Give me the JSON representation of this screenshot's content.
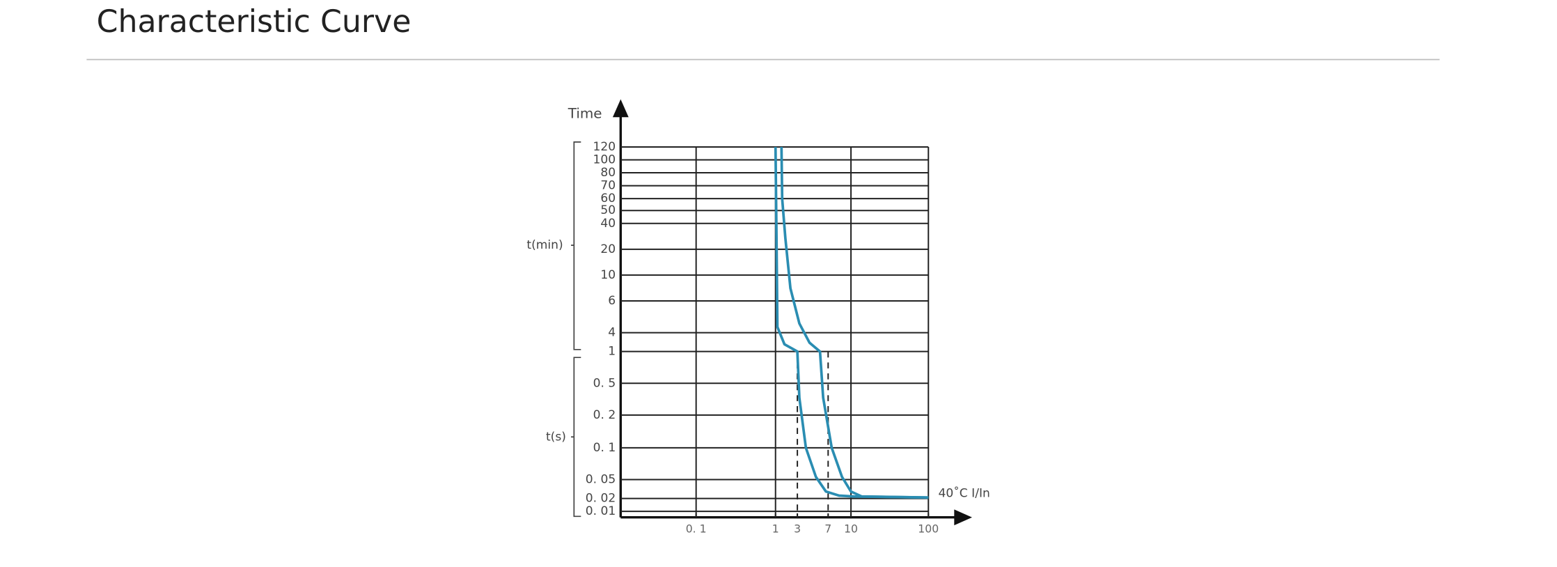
{
  "header": {
    "title": "Characteristic Curve"
  },
  "chart_data": {
    "type": "line",
    "y_label": "Time",
    "x_label": "40˚C  I/In",
    "y_group_labels": [
      "t(min)",
      "t(s)"
    ],
    "xscale": "log",
    "xlim": [
      0.01,
      100
    ],
    "xticks": [
      {
        "value": 0.1,
        "label": "0. 1"
      },
      1,
      3,
      7,
      10,
      100
    ],
    "xgrid_style": [
      "solid",
      "solid",
      "dashed",
      "dashed",
      "solid",
      "solid"
    ],
    "ylim": [
      0.01,
      120
    ],
    "yticks": [
      120,
      100,
      80,
      70,
      60,
      50,
      40,
      20,
      10,
      6,
      4,
      1,
      {
        "value": 0.5,
        "label": "0. 5"
      },
      {
        "value": 0.2,
        "label": "0. 2"
      },
      {
        "value": 0.1,
        "label": "0. 1"
      },
      {
        "value": 0.05,
        "label": "0. 05"
      },
      {
        "value": 0.02,
        "label": "0. 02"
      },
      {
        "value": 0.01,
        "label": "0. 01"
      }
    ],
    "grid": true,
    "series": [
      {
        "color": "#2a8db2",
        "x": [
          1,
          1.05,
          1.1,
          1.57,
          3,
          3.17,
          3.8,
          5.0,
          6.6,
          8.3,
          10.9,
          100
        ],
        "values": [
          120,
          27,
          4.3,
          1.7,
          1,
          0.33,
          0.1,
          0.053,
          0.028,
          0.023,
          0.022,
          0.021
        ]
      },
      {
        "color": "#2a8db2",
        "x": [
          1.35,
          1.4,
          1.64,
          2.11,
          3.17,
          4.2,
          5.6,
          6.1,
          7.4,
          8.7,
          10,
          13.8,
          100
        ],
        "values": [
          120,
          60,
          27,
          7.7,
          4.5,
          1.9,
          1,
          0.33,
          0.1,
          0.053,
          0.028,
          0.022,
          0.021
        ]
      }
    ]
  }
}
